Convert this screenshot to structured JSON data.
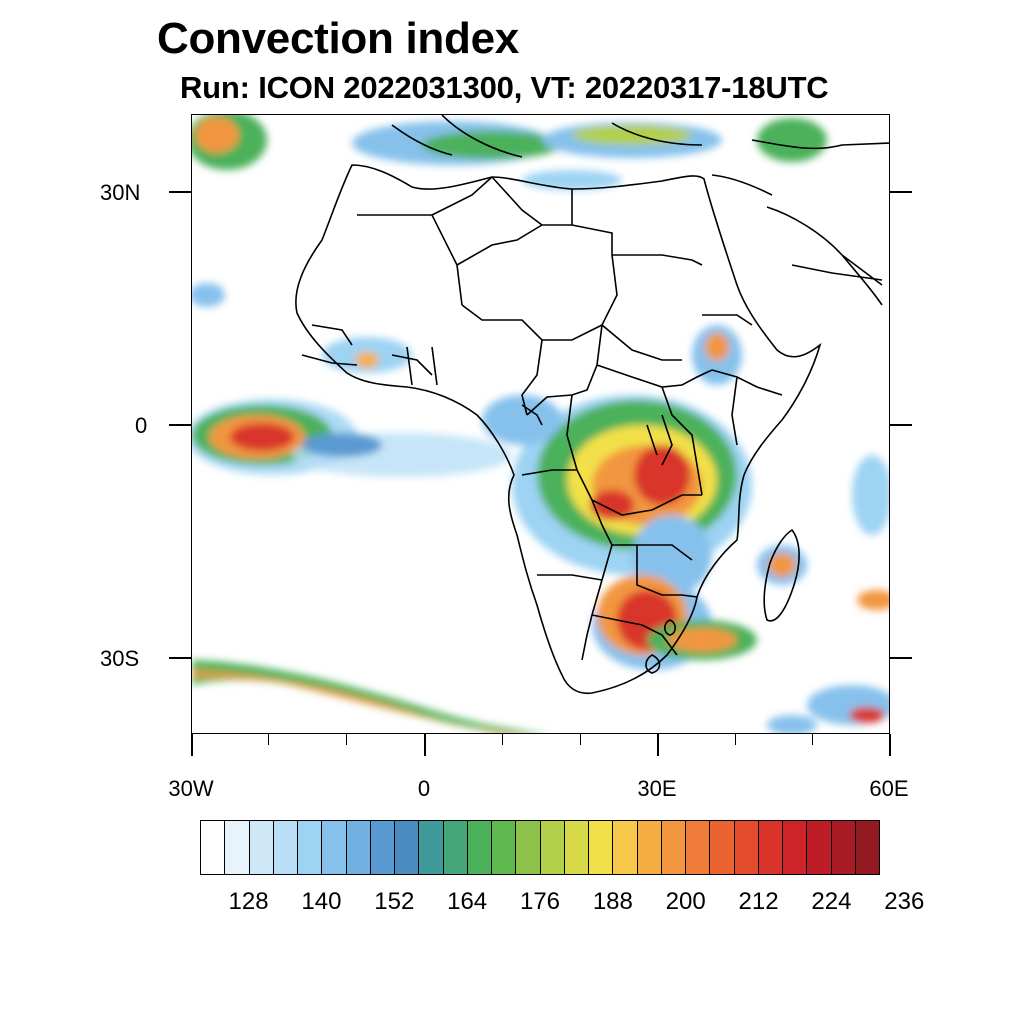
{
  "header": {
    "title": "Convection index",
    "subtitle": "Run: ICON 2022031300,  VT: 20220317-18UTC"
  },
  "axes": {
    "lat_labels": [
      "30N",
      "0",
      "30S"
    ],
    "lon_labels": [
      "30W",
      "0",
      "30E",
      "60E"
    ],
    "lon_range": [
      -30,
      60
    ],
    "lat_range": [
      -40,
      40
    ]
  },
  "colorbar": {
    "colors": [
      "#ffffff",
      "#e8f4fc",
      "#cfe8f8",
      "#b8dff6",
      "#9dd3f3",
      "#86c1ec",
      "#72b0e2",
      "#5a9ad2",
      "#4a8cc0",
      "#3f9a9a",
      "#45a67a",
      "#4bb15a",
      "#5fb84d",
      "#8cc24a",
      "#b4cf4a",
      "#d8d948",
      "#f2e04a",
      "#f7c84a",
      "#f6ae44",
      "#f29640",
      "#ef7c38",
      "#eb6330",
      "#e24b2c",
      "#d93429",
      "#cc2428",
      "#bc1d26",
      "#a81a24",
      "#921a20"
    ],
    "labels": [
      "128",
      "140",
      "152",
      "164",
      "176",
      "188",
      "200",
      "212",
      "224",
      "236"
    ]
  }
}
